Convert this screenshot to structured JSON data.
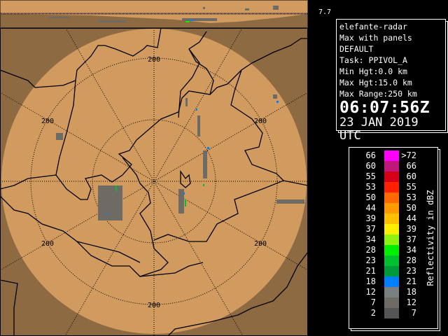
{
  "top_panel_max": "7.7",
  "info": {
    "site": "elefante-radar",
    "product": "Max with panels",
    "config": "DEFAULT",
    "task": "Task: PPIVOL_A",
    "min_hgt": "Min Hgt:0.0 km",
    "max_hgt": "Max Hgt:15.0 km",
    "max_range": "Max Range:250 km",
    "time": "06:07:56Z",
    "date": "23 JAN 2019 UTC"
  },
  "map": {
    "range_ring_labels": [
      "200",
      "200",
      "200",
      "200",
      "200",
      "200",
      "200",
      "200"
    ],
    "colors": {
      "in_range": "#d19a5f",
      "out_of_range": "#8e6a43",
      "border": "#000000"
    }
  },
  "legend": {
    "unit": "Reflectivity in dBZ",
    "rows": [
      {
        "lo": "66",
        "hi": ">72",
        "color": "#ff00ff"
      },
      {
        "lo": "60",
        "hi": "66",
        "color": "#c0187a"
      },
      {
        "lo": "55",
        "hi": "60",
        "color": "#d4001a"
      },
      {
        "lo": "53",
        "hi": "55",
        "color": "#ff2000"
      },
      {
        "lo": "50",
        "hi": "53",
        "color": "#ff6a00"
      },
      {
        "lo": "44",
        "hi": "50",
        "color": "#ff9a00"
      },
      {
        "lo": "39",
        "hi": "44",
        "color": "#ffc000"
      },
      {
        "lo": "37",
        "hi": "39",
        "color": "#ffee00"
      },
      {
        "lo": "34",
        "hi": "37",
        "color": "#90f010"
      },
      {
        "lo": "28",
        "hi": "34",
        "color": "#00ee00"
      },
      {
        "lo": "23",
        "hi": "28",
        "color": "#00c030"
      },
      {
        "lo": "21",
        "hi": "23",
        "color": "#009a3a"
      },
      {
        "lo": "18",
        "hi": "21",
        "color": "#0080ff"
      },
      {
        "lo": "12",
        "hi": "18",
        "color": "#7a8080"
      },
      {
        "lo": "7",
        "hi": "12",
        "color": "#6e6a64"
      },
      {
        "lo": "2",
        "hi": "7",
        "color": "#555555"
      }
    ]
  }
}
